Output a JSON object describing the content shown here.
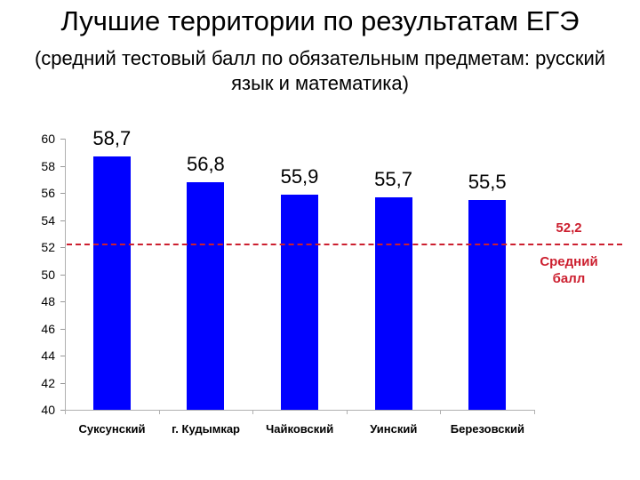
{
  "header": {
    "title": "Лучшие территории по результатам ЕГЭ",
    "subtitle_line1": "(средний тестовый балл по обязательным предметам: русский",
    "subtitle_line2": "язык и математика)"
  },
  "chart_data": {
    "type": "bar",
    "title": "Лучшие территории по результатам ЕГЭ",
    "subtitle": "(средний тестовый балл по обязательным предметам: русский язык и математика)",
    "categories": [
      "Суксунский",
      "г. Кудымкар",
      "Чайковский",
      "Уинский",
      "Березовский"
    ],
    "values": [
      58.7,
      56.8,
      55.9,
      55.7,
      55.5
    ],
    "value_labels": [
      "58,7",
      "56,8",
      "55,9",
      "55,7",
      "55,5"
    ],
    "xlabel": "",
    "ylabel": "",
    "ylim": [
      40,
      60
    ],
    "yticks": [
      40,
      42,
      44,
      46,
      48,
      50,
      52,
      54,
      56,
      58,
      60
    ],
    "grid": false,
    "bar_color": "#0000ff",
    "reference_line": {
      "value": 52.2,
      "value_label": "52,2",
      "label": "Средний балл",
      "style": "dashed",
      "color": "#cc1f2f"
    }
  },
  "annotations": {
    "avg_value": "52,2",
    "avg_label_line1": "Средний",
    "avg_label_line2": "балл"
  }
}
